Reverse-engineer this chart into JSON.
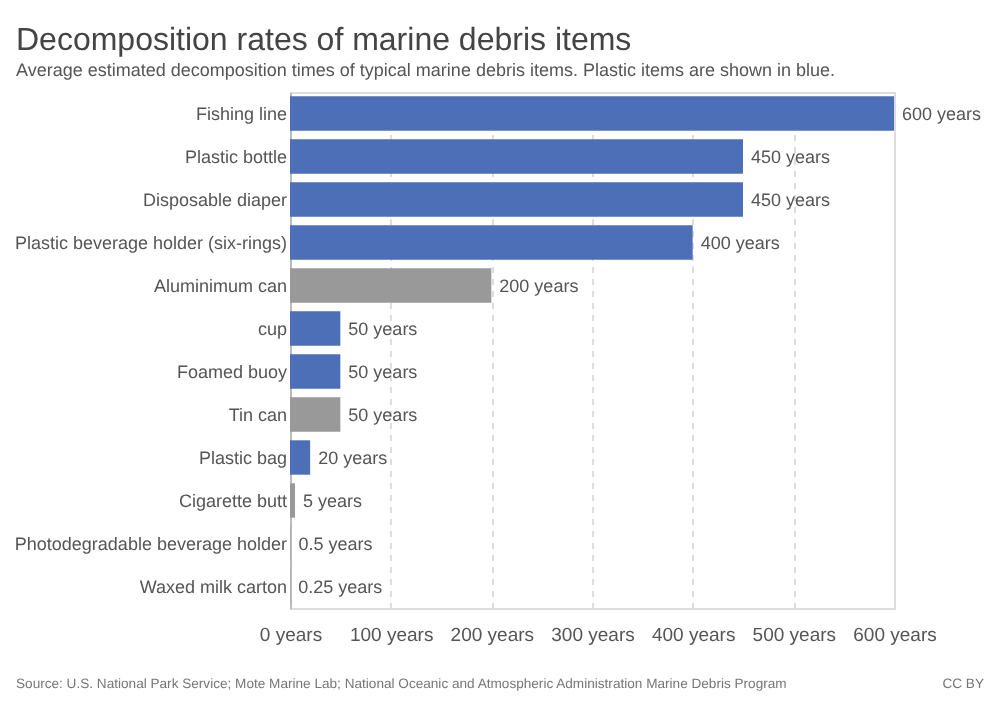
{
  "chart_data": {
    "type": "bar",
    "orientation": "horizontal",
    "title": "Decomposition rates of marine debris items",
    "subtitle": "Average estimated decomposition times of typical marine debris items. Plastic items are shown in blue.",
    "categories": [
      "Fishing line",
      "Plastic bottle",
      "Disposable diaper",
      "Plastic beverage holder (six-rings)",
      "Aluminimum can",
      "cup",
      "Foamed buoy",
      "Tin can",
      "Plastic bag",
      "Cigarette butt",
      "Photodegradable beverage holder",
      "Waxed milk carton"
    ],
    "values": [
      600,
      450,
      450,
      400,
      200,
      50,
      50,
      50,
      20,
      5,
      0.5,
      0.25
    ],
    "colors": [
      "#4c6fb8",
      "#4c6fb8",
      "#4c6fb8",
      "#4c6fb8",
      "#999999",
      "#4c6fb8",
      "#4c6fb8",
      "#999999",
      "#4c6fb8",
      "#999999",
      "#999999",
      "#999999"
    ],
    "value_labels": [
      "600 years",
      "450 years",
      "450 years",
      "400 years",
      "200 years",
      "50 years",
      "50 years",
      "50 years",
      "20 years",
      "5 years",
      "0.5 years",
      "0.25 years"
    ],
    "xlim": [
      0,
      600
    ],
    "xticks": [
      {
        "value": 0,
        "label": "0 years"
      },
      {
        "value": 100,
        "label": "100 years"
      },
      {
        "value": 200,
        "label": "200 years"
      },
      {
        "value": 300,
        "label": "300 years"
      },
      {
        "value": 400,
        "label": "400 years"
      },
      {
        "value": 500,
        "label": "500 years"
      },
      {
        "value": 600,
        "label": "600 years"
      }
    ],
    "grid": "x",
    "annotations": [
      "Source: U.S. National Park Service; Mote Marine Lab; National Oceanic and Atmospheric Administration Marine Debris Program",
      "CC BY"
    ]
  }
}
